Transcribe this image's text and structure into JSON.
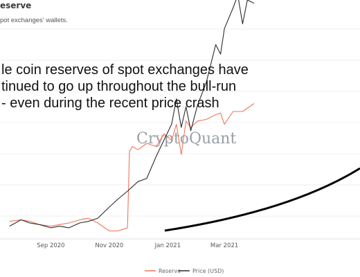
{
  "header": {
    "title": "eserve",
    "subtitle": "pot exchanges' wallets."
  },
  "annotation": [
    "le coin reserves of spot exchanges have",
    "tinued to go up throughout the bull-run",
    "- even during the recent price crash"
  ],
  "watermark": "CryptoQuant",
  "chart_data": {
    "type": "line",
    "x_ticks": [
      "Sep 2020",
      "Nov 2020",
      "Jan 2021",
      "Mar 2021"
    ],
    "y_axis_labels_visible": false,
    "grid": "horizontal",
    "legend_position": "bottom-center",
    "series": [
      {
        "name": "Reserve",
        "color": "#f2735a",
        "x": [
          "2020-07-20",
          "2020-08-01",
          "2020-08-10",
          "2020-08-20",
          "2020-09-01",
          "2020-09-10",
          "2020-09-20",
          "2020-10-01",
          "2020-10-10",
          "2020-10-20",
          "2020-11-01",
          "2020-11-10",
          "2020-11-15",
          "2020-11-20",
          "2020-11-22",
          "2020-11-25",
          "2020-12-01",
          "2020-12-10",
          "2020-12-20",
          "2020-12-28",
          "2021-01-05",
          "2021-01-10",
          "2021-01-15",
          "2021-01-20",
          "2021-01-25",
          "2021-02-01",
          "2021-02-10",
          "2021-02-20",
          "2021-02-25",
          "2021-03-01",
          "2021-03-10",
          "2021-03-20",
          "2021-04-01"
        ],
        "y": [
          0.11,
          0.12,
          0.11,
          0.09,
          0.08,
          0.09,
          0.1,
          0.12,
          0.13,
          0.1,
          0.05,
          0.05,
          0.06,
          0.07,
          0.55,
          0.58,
          0.56,
          0.6,
          0.58,
          0.66,
          0.62,
          0.72,
          0.53,
          0.74,
          0.7,
          0.74,
          0.75,
          0.78,
          0.79,
          0.72,
          0.8,
          0.8,
          0.85
        ]
      },
      {
        "name": "Price (USD)",
        "color": "#2b2b2b",
        "x": [
          "2020-07-20",
          "2020-08-01",
          "2020-08-10",
          "2020-08-20",
          "2020-09-01",
          "2020-09-10",
          "2020-09-20",
          "2020-10-01",
          "2020-10-10",
          "2020-10-20",
          "2020-11-01",
          "2020-11-10",
          "2020-11-20",
          "2020-12-01",
          "2020-12-10",
          "2020-12-20",
          "2020-12-28",
          "2021-01-05",
          "2021-01-10",
          "2021-01-15",
          "2021-01-20",
          "2021-01-25",
          "2021-02-01",
          "2021-02-10",
          "2021-02-20",
          "2021-02-25",
          "2021-03-01",
          "2021-03-10",
          "2021-03-15",
          "2021-03-20",
          "2021-03-25",
          "2021-04-01"
        ],
        "y": [
          0.08,
          0.12,
          0.1,
          0.09,
          0.07,
          0.08,
          0.07,
          0.1,
          0.11,
          0.13,
          0.2,
          0.25,
          0.3,
          0.36,
          0.38,
          0.52,
          0.62,
          0.72,
          0.88,
          0.7,
          0.83,
          0.68,
          0.84,
          0.98,
          1.22,
          1.16,
          1.32,
          1.45,
          1.53,
          1.35,
          1.5,
          1.48
        ]
      }
    ]
  },
  "legend": [
    "Reserve",
    "Price (USD)"
  ]
}
